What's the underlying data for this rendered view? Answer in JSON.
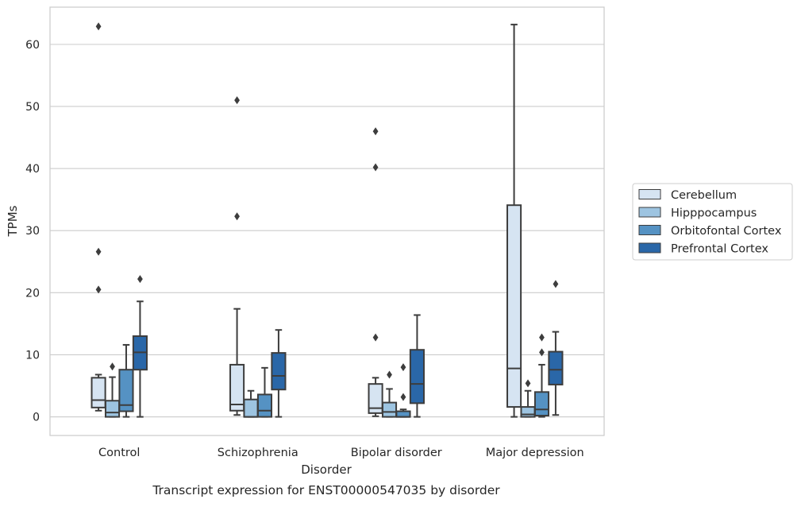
{
  "chart_data": {
    "type": "box",
    "caption": "Transcript expression for ENST00000547035 by disorder",
    "xlabel": "Disorder",
    "ylabel": "TPMs",
    "ylim": [
      -3,
      66
    ],
    "yticks": [
      0,
      10,
      20,
      30,
      40,
      50,
      60
    ],
    "ytick_labels": [
      "0",
      "10",
      "20",
      "30",
      "40",
      "50",
      "60"
    ],
    "grid": "horizontal",
    "legend_position": "right",
    "categories": [
      "Control",
      "Schizophrenia",
      "Bipolar disorder",
      "Major depression"
    ],
    "series": [
      {
        "name": "Cerebellum",
        "color": "#d6e4f2",
        "boxes": [
          {
            "whisker_low": 1.0,
            "q1": 1.5,
            "median": 2.7,
            "q3": 6.3,
            "whisker_high": 6.8,
            "outliers": [
              20.5,
              26.6,
              62.9
            ]
          },
          {
            "whisker_low": 0.3,
            "q1": 1.0,
            "median": 2.0,
            "q3": 8.4,
            "whisker_high": 17.4,
            "outliers": [
              32.3,
              51.0
            ]
          },
          {
            "whisker_low": 0.1,
            "q1": 0.6,
            "median": 1.4,
            "q3": 5.3,
            "whisker_high": 6.3,
            "outliers": [
              12.8,
              40.2,
              46.0
            ]
          },
          {
            "whisker_low": 0.0,
            "q1": 1.6,
            "median": 7.8,
            "q3": 34.1,
            "whisker_high": 63.2,
            "outliers": []
          }
        ]
      },
      {
        "name": "Hipppocampus",
        "color": "#9dc4e1",
        "boxes": [
          {
            "whisker_low": 0.0,
            "q1": 0.0,
            "median": 0.7,
            "q3": 2.6,
            "whisker_high": 6.4,
            "outliers": [
              8.1
            ]
          },
          {
            "whisker_low": 0.0,
            "q1": 0.0,
            "median": 0.0,
            "q3": 2.8,
            "whisker_high": 4.2,
            "outliers": []
          },
          {
            "whisker_low": 0.0,
            "q1": 0.0,
            "median": 0.8,
            "q3": 2.3,
            "whisker_high": 4.5,
            "outliers": [
              6.8
            ]
          },
          {
            "whisker_low": 0.0,
            "q1": 0.0,
            "median": 0.4,
            "q3": 1.6,
            "whisker_high": 4.2,
            "outliers": [
              5.4
            ]
          }
        ]
      },
      {
        "name": "Orbitofontal Cortex",
        "color": "#5592c3",
        "boxes": [
          {
            "whisker_low": 0.0,
            "q1": 0.9,
            "median": 1.9,
            "q3": 7.6,
            "whisker_high": 11.6,
            "outliers": []
          },
          {
            "whisker_low": 0.0,
            "q1": 0.0,
            "median": 1.0,
            "q3": 3.6,
            "whisker_high": 7.9,
            "outliers": []
          },
          {
            "whisker_low": 0.0,
            "q1": 0.0,
            "median": 0.0,
            "q3": 0.9,
            "whisker_high": 1.2,
            "outliers": [
              3.2,
              8.0
            ]
          },
          {
            "whisker_low": 0.0,
            "q1": 0.2,
            "median": 1.2,
            "q3": 4.0,
            "whisker_high": 8.4,
            "outliers": [
              10.4,
              12.8
            ]
          }
        ]
      },
      {
        "name": "Prefrontal Cortex",
        "color": "#2a67a8",
        "boxes": [
          {
            "whisker_low": 0.0,
            "q1": 7.6,
            "median": 10.4,
            "q3": 13.0,
            "whisker_high": 18.6,
            "outliers": [
              22.2
            ]
          },
          {
            "whisker_low": 0.0,
            "q1": 4.4,
            "median": 6.6,
            "q3": 10.3,
            "whisker_high": 14.0,
            "outliers": []
          },
          {
            "whisker_low": 0.0,
            "q1": 2.2,
            "median": 5.3,
            "q3": 10.8,
            "whisker_high": 16.4,
            "outliers": []
          },
          {
            "whisker_low": 0.3,
            "q1": 5.2,
            "median": 7.6,
            "q3": 10.5,
            "whisker_high": 13.7,
            "outliers": [
              21.4
            ]
          }
        ]
      }
    ]
  }
}
